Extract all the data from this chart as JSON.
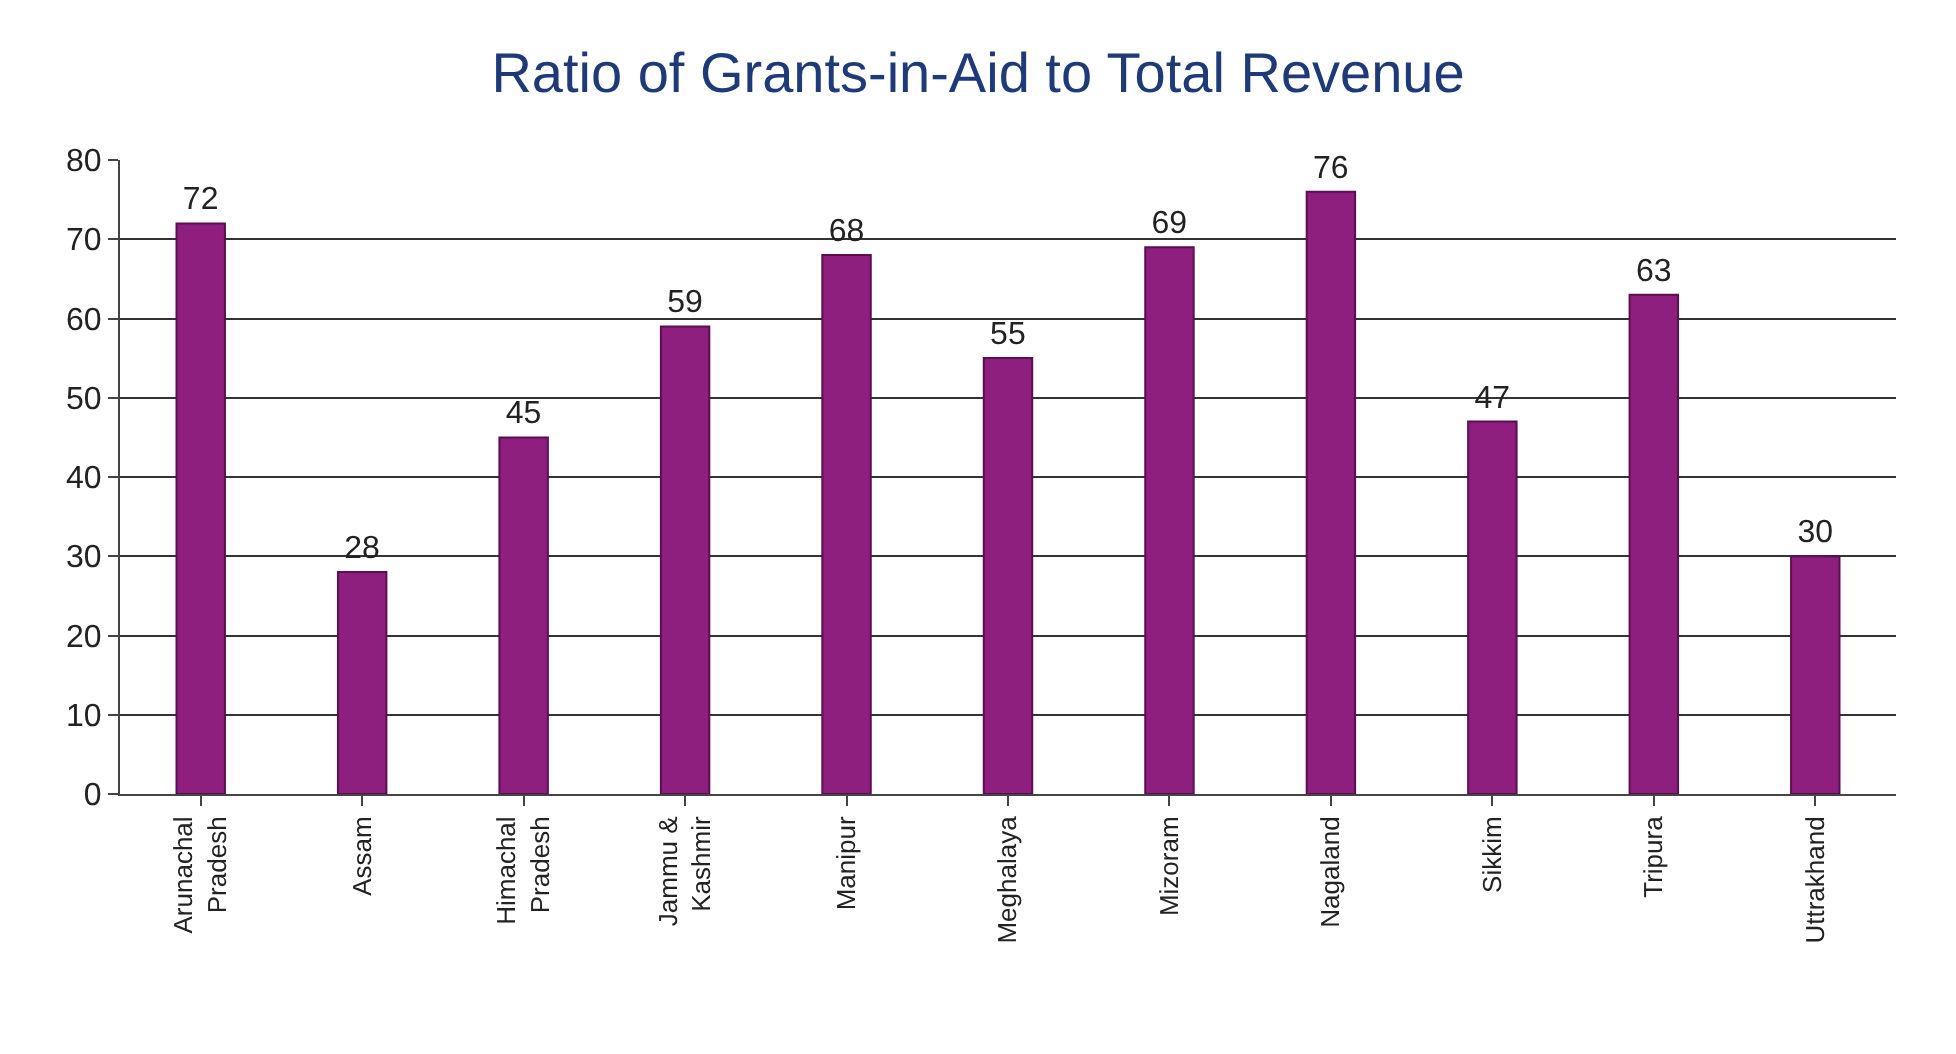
{
  "chart_data": {
    "type": "bar",
    "title": "Ratio of Grants-in-Aid to Total Revenue",
    "categories": [
      "Arunachal Pradesh",
      "Assam",
      "Himachal Pradesh",
      "Jammu & Kashmir",
      "Manipur",
      "Meghalaya",
      "Mizoram",
      "Nagaland",
      "Sikkim",
      "Tripura",
      "Uttrakhand"
    ],
    "values": [
      72,
      28,
      45,
      59,
      68,
      55,
      69,
      76,
      47,
      63,
      30
    ],
    "color": "#8e1f7e",
    "ylim": [
      0,
      80
    ],
    "yticks": [
      0,
      10,
      20,
      30,
      40,
      50,
      60,
      70,
      80
    ],
    "grid": "y",
    "data_labels": true
  }
}
